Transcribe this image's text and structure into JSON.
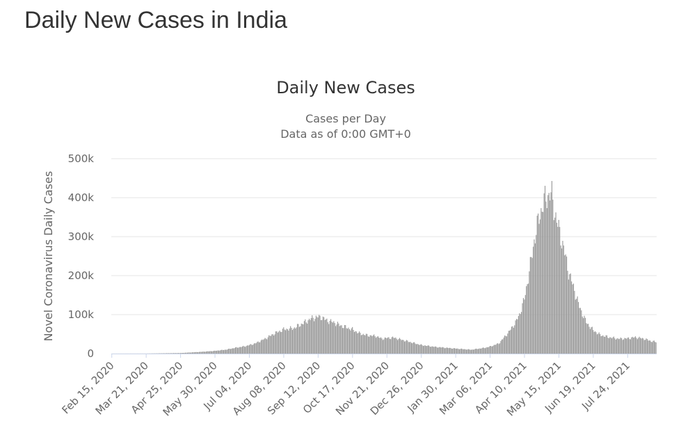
{
  "page": {
    "heading": "Daily New Cases in India"
  },
  "chart_data": {
    "type": "bar",
    "title": "Daily New Cases",
    "subtitle_lines": [
      "Cases per Day",
      "Data as of 0:00 GMT+0"
    ],
    "xlabel": "",
    "ylabel": "Novel Coronavirus Daily Cases",
    "ylim": [
      0,
      500000
    ],
    "y_ticks": [
      0,
      100000,
      200000,
      300000,
      400000,
      500000
    ],
    "y_tick_labels": [
      "0",
      "100k",
      "200k",
      "300k",
      "400k",
      "500k"
    ],
    "x_range": [
      "2020-02-15",
      "2021-08-22"
    ],
    "x_ticks": [
      "2020-02-15",
      "2020-03-21",
      "2020-04-25",
      "2020-05-30",
      "2020-07-04",
      "2020-08-08",
      "2020-09-12",
      "2020-10-17",
      "2020-11-21",
      "2020-12-26",
      "2021-01-30",
      "2021-03-06",
      "2021-04-10",
      "2021-05-15",
      "2021-06-19",
      "2021-07-24"
    ],
    "x_tick_labels": [
      "Feb 15, 2020",
      "Mar 21, 2020",
      "Apr 25, 2020",
      "May 30, 2020",
      "Jul 04, 2020",
      "Aug 08, 2020",
      "Sep 12, 2020",
      "Oct 17, 2020",
      "Nov 21, 2020",
      "Dec 26, 2020",
      "Jan 30, 2021",
      "Mar 06, 2021",
      "Apr 10, 2021",
      "May 15, 2021",
      "Jun 19, 2021",
      "Jul 24, 2021"
    ],
    "grid": true,
    "bar_color": "#999999",
    "series": [
      {
        "resolution": "daily, values read at approximately 4-day intervals from the gridlines",
        "x": [
          "2020-02-15",
          "2020-03-21",
          "2020-04-25",
          "2020-05-06",
          "2020-05-16",
          "2020-05-30",
          "2020-06-10",
          "2020-06-20",
          "2020-06-30",
          "2020-07-10",
          "2020-07-20",
          "2020-07-30",
          "2020-08-08",
          "2020-08-18",
          "2020-08-28",
          "2020-09-05",
          "2020-09-12",
          "2020-09-16",
          "2020-09-20",
          "2020-09-28",
          "2020-10-05",
          "2020-10-17",
          "2020-10-24",
          "2020-11-01",
          "2020-11-10",
          "2020-11-16",
          "2020-11-21",
          "2020-11-28",
          "2020-12-10",
          "2020-12-26",
          "2021-01-10",
          "2021-01-30",
          "2021-02-15",
          "2021-03-01",
          "2021-03-06",
          "2021-03-15",
          "2021-03-25",
          "2021-04-01",
          "2021-04-05",
          "2021-04-10",
          "2021-04-15",
          "2021-04-20",
          "2021-04-25",
          "2021-04-30",
          "2021-05-02",
          "2021-05-06",
          "2021-05-08",
          "2021-05-11",
          "2021-05-15",
          "2021-05-20",
          "2021-05-25",
          "2021-05-30",
          "2021-06-05",
          "2021-06-12",
          "2021-06-19",
          "2021-06-26",
          "2021-07-05",
          "2021-07-15",
          "2021-07-24",
          "2021-08-01",
          "2021-08-10",
          "2021-08-17",
          "2021-08-22"
        ],
        "values": [
          100,
          200,
          1500,
          3000,
          4500,
          7000,
          10000,
          15000,
          19000,
          26000,
          38000,
          52000,
          62000,
          65000,
          78000,
          90000,
          94000,
          93000,
          86000,
          80000,
          72000,
          62000,
          52000,
          47000,
          45000,
          38000,
          40000,
          41000,
          33000,
          22000,
          17000,
          13000,
          10000,
          15000,
          18000,
          26000,
          55000,
          80000,
          100000,
          140000,
          210000,
          290000,
          350000,
          390000,
          400000,
          410000,
          405000,
          360000,
          320000,
          270000,
          210000,
          170000,
          120000,
          80000,
          60000,
          48000,
          42000,
          38000,
          39000,
          42000,
          38000,
          32000,
          30000
        ]
      }
    ]
  }
}
